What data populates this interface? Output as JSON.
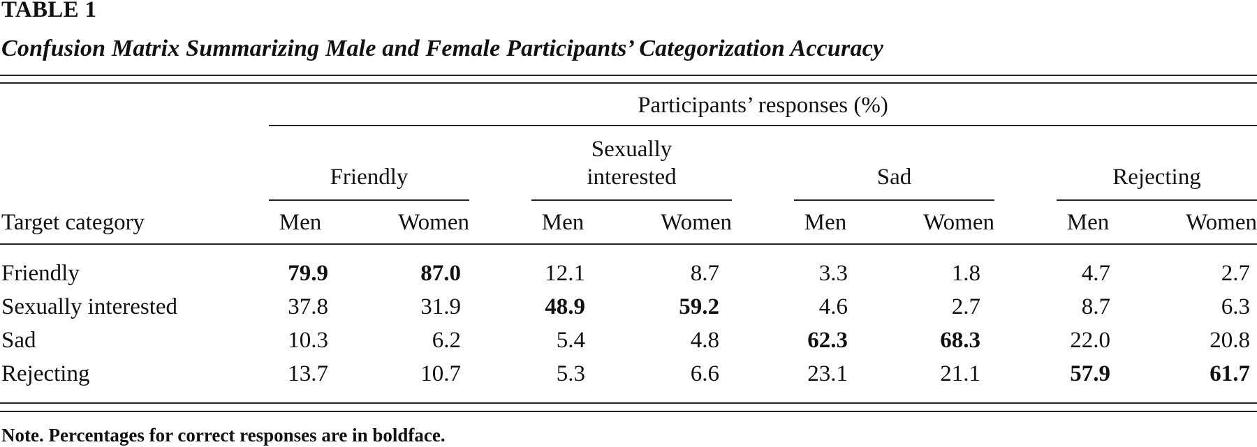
{
  "table": {
    "label": "TABLE 1",
    "caption": "Confusion Matrix Summarizing Male and Female Participants’ Categorization Accuracy",
    "spanner": "Participants’ responses (%)",
    "stub_header": "Target category",
    "groups": [
      {
        "label": "Friendly"
      },
      {
        "label_line1": "Sexually",
        "label_line2": "interested"
      },
      {
        "label": "Sad"
      },
      {
        "label": "Rejecting"
      }
    ],
    "sub_headers": [
      "Men",
      "Women"
    ],
    "rows": [
      {
        "category": "Friendly",
        "values": [
          "79.9",
          "87.0",
          "12.1",
          "8.7",
          "3.3",
          "1.8",
          "4.7",
          "2.7"
        ],
        "bold_group": 0
      },
      {
        "category": "Sexually interested",
        "values": [
          "37.8",
          "31.9",
          "48.9",
          "59.2",
          "4.6",
          "2.7",
          "8.7",
          "6.3"
        ],
        "bold_group": 1
      },
      {
        "category": "Sad",
        "values": [
          "10.3",
          "6.2",
          "5.4",
          "4.8",
          "62.3",
          "68.3",
          "22.0",
          "20.8"
        ],
        "bold_group": 2
      },
      {
        "category": "Rejecting",
        "values": [
          "13.7",
          "10.7",
          "5.3",
          "6.6",
          "23.1",
          "21.1",
          "57.9",
          "61.7"
        ],
        "bold_group": 3
      }
    ],
    "note_label": "Note.",
    "note_text": "Percentages for correct responses are in boldface."
  }
}
